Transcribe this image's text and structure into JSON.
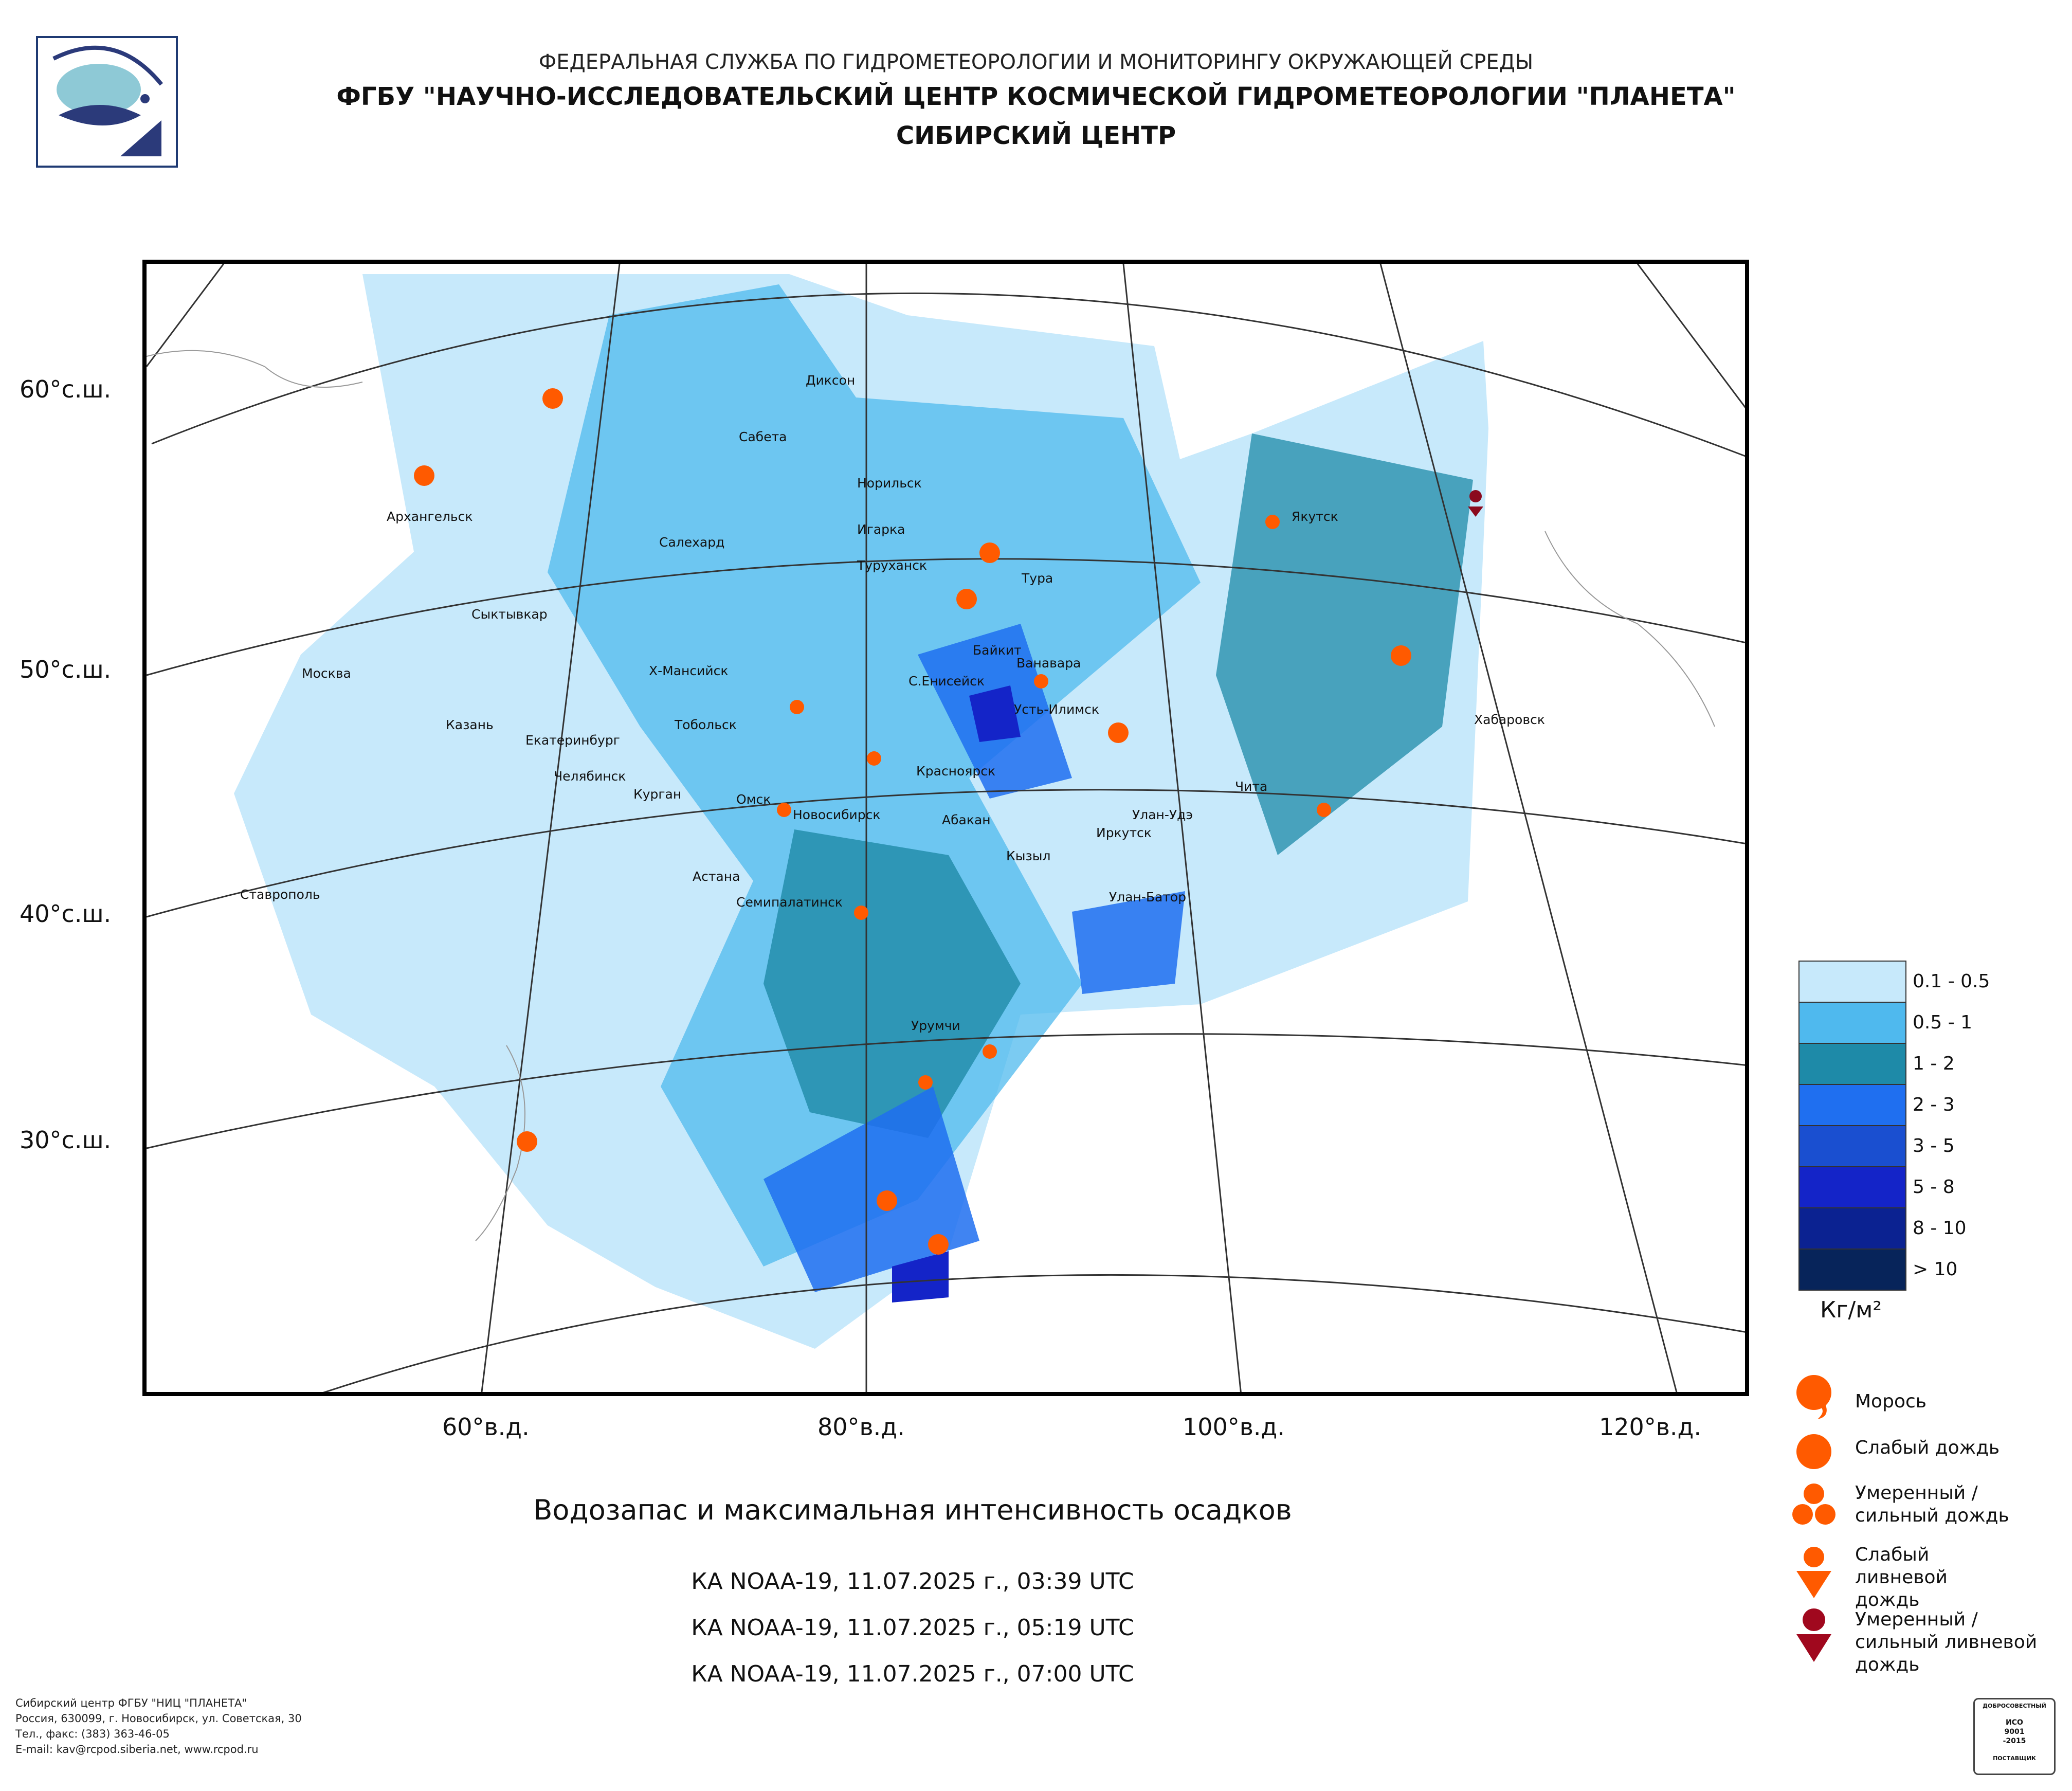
{
  "header": {
    "line1": "ФЕДЕРАЛЬНАЯ СЛУЖБА ПО ГИДРОМЕТЕОРОЛОГИИ И МОНИТОРИНГУ ОКРУЖАЮЩЕЙ СРЕДЫ",
    "line2": "ФГБУ \"НАУЧНО-ИССЛЕДОВАТЕЛЬСКИЙ ЦЕНТР КОСМИЧЕСКОЙ ГИДРОМЕТЕОРОЛОГИИ \"ПЛАНЕТА\"",
    "line3": "СИБИРСКИЙ ЦЕНТР"
  },
  "map": {
    "lat_labels": [
      "60°с.ш.",
      "50°с.ш.",
      "40°с.ш.",
      "30°с.ш."
    ],
    "lon_labels": [
      "60°в.д.",
      "80°в.д.",
      "100°в.д.",
      "120°в.д."
    ],
    "cities": [
      "Диксон",
      "Сабета",
      "Норильск",
      "Архангельск",
      "Салехард",
      "Игарка",
      "Туруханск",
      "Тура",
      "Якутск",
      "Сыктывкар",
      "Байкит",
      "Ванавара",
      "Х-Мансийск",
      "С.Енисейск",
      "Москва",
      "Усть-Илимск",
      "Казань",
      "Екатеринбург",
      "Тобольск",
      "Хабаровск",
      "Красноярск",
      "Челябинск",
      "Курган",
      "Омск",
      "Новосибирск",
      "Чита",
      "Абакан",
      "Улан-Удэ",
      "Иркутск",
      "Кызыл",
      "Астана",
      "Улан-Батор",
      "Ставрополь",
      "Семипалатинск",
      "Урумчи"
    ]
  },
  "legend": {
    "colors": [
      "#c7e9fb",
      "#4fb9ee",
      "#1e8aa8",
      "#1f6ff0",
      "#1a4fd0",
      "#1424c8",
      "#0b2291",
      "#07245a"
    ],
    "ranges": [
      "0.1 - 0.5",
      "0.5 - 1",
      "1 - 2",
      "2 - 3",
      "3 - 5",
      "5 - 8",
      "8 - 10",
      "> 10"
    ],
    "unit": "Кг/м²"
  },
  "symbols": [
    {
      "icon": "drizzle-icon",
      "label": "Морось"
    },
    {
      "icon": "light-rain-icon",
      "label": "Слабый дождь"
    },
    {
      "icon": "moderate-rain-icon",
      "label": "Умеренный / сильный дождь"
    },
    {
      "icon": "light-shower-icon",
      "label": "Слабый ливневой дождь"
    },
    {
      "icon": "heavy-shower-icon",
      "label": "Умеренный / сильный ливневой дождь"
    }
  ],
  "title": "Водозапас и максимальная интенсивность осадков",
  "passes": [
    "КА NOAA-19, 11.07.2025 г., 03:39 UTC",
    "КА NOAA-19, 11.07.2025 г., 05:19 UTC",
    "КА NOAA-19, 11.07.2025 г., 07:00 UTC"
  ],
  "footer": [
    "Сибирский центр ФГБУ \"НИЦ \"ПЛАНЕТА\"",
    "Россия, 630099, г. Новосибирск, ул. Советская, 30",
    "Тел., факс: (383) 363-46-05",
    "E-mail: kav@rcpod.siberia.net, www.rcpod.ru"
  ],
  "cert": {
    "line1": "ДОБРОСОВЕСТНЫЙ",
    "line2": "ИСО",
    "line3": "9001",
    "line4": "-2015",
    "line5": "ПОСТАВЩИК"
  }
}
